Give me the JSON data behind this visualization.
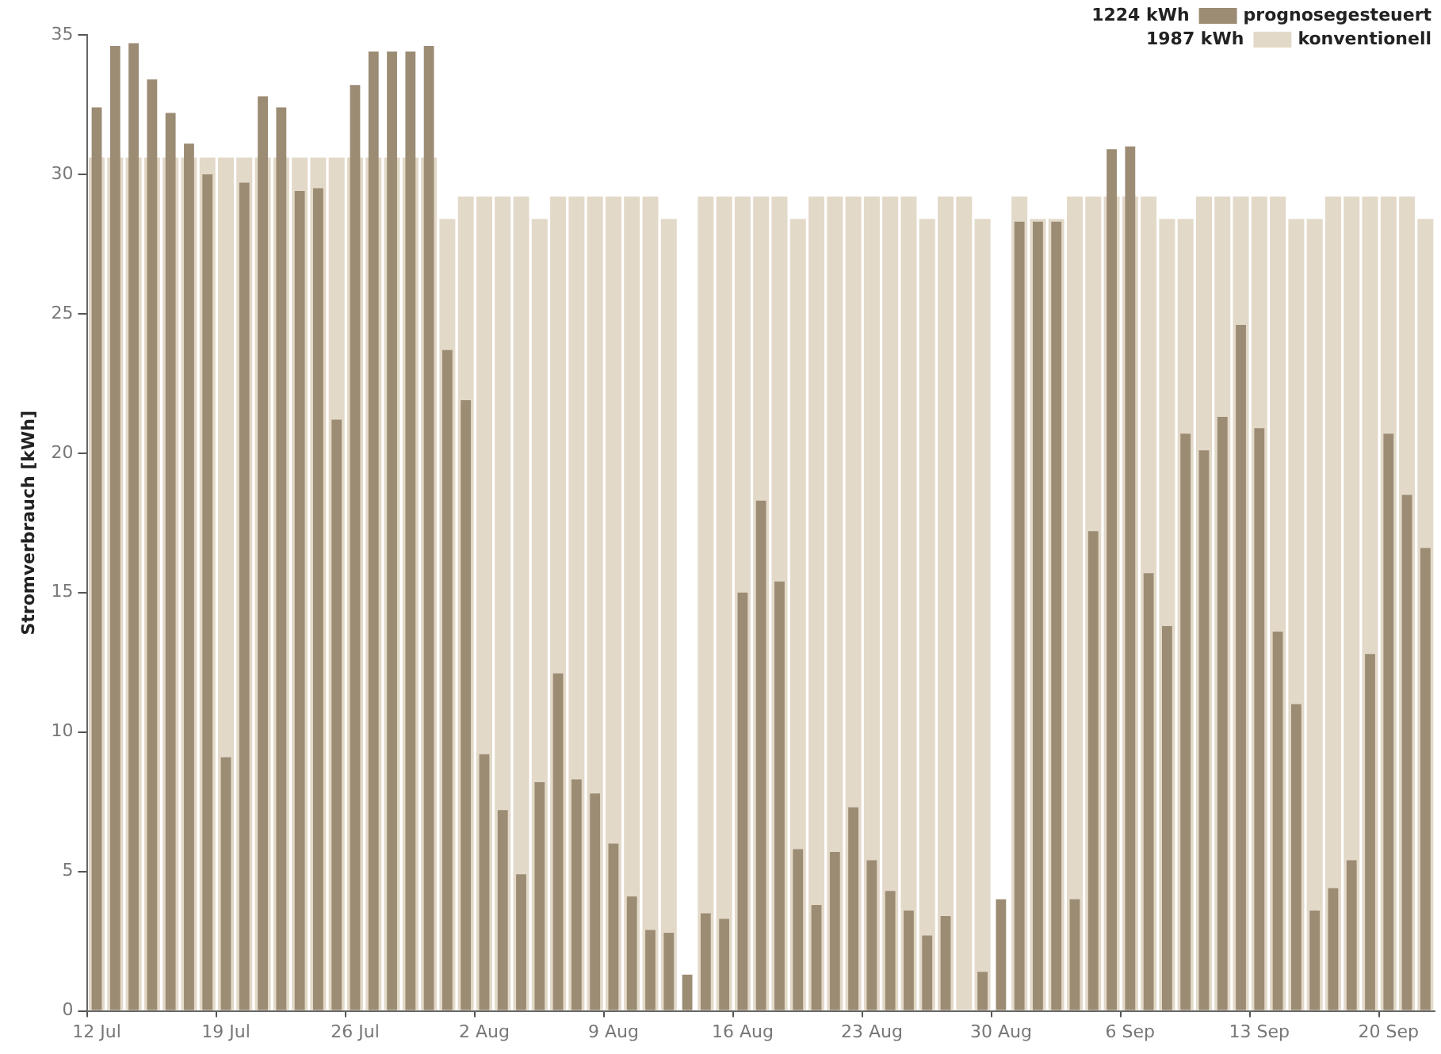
{
  "chart_data": {
    "type": "bar",
    "ylabel": "Stromverbrauch [kWh]",
    "categories": [
      "12 Jul",
      null,
      null,
      null,
      null,
      null,
      null,
      "19 Jul",
      null,
      null,
      null,
      null,
      null,
      null,
      "26 Jul",
      null,
      null,
      null,
      null,
      null,
      null,
      "2 Aug",
      null,
      null,
      null,
      null,
      null,
      null,
      "9 Aug",
      null,
      null,
      null,
      null,
      null,
      null,
      "16 Aug",
      null,
      null,
      null,
      null,
      null,
      null,
      "23 Aug",
      null,
      null,
      null,
      null,
      null,
      null,
      "30 Aug",
      null,
      null,
      null,
      null,
      null,
      null,
      "6 Sep",
      null,
      null,
      null,
      null,
      null,
      null,
      "13 Sep",
      null,
      null,
      null,
      null,
      null,
      null,
      "20 Sep",
      null,
      null
    ],
    "series": [
      {
        "name": "prognosegesteuert",
        "color": "#9c8c74",
        "values": [
          32.4,
          34.6,
          34.7,
          33.4,
          32.2,
          31.1,
          30.0,
          9.1,
          29.7,
          32.8,
          32.4,
          29.4,
          29.5,
          21.2,
          33.2,
          34.4,
          34.4,
          34.4,
          34.6,
          23.7,
          21.9,
          9.2,
          7.2,
          4.9,
          8.2,
          12.1,
          8.3,
          7.8,
          6.0,
          4.1,
          2.9,
          2.8,
          1.3,
          3.5,
          3.3,
          15.0,
          18.3,
          15.4,
          5.8,
          3.8,
          5.7,
          7.3,
          5.4,
          4.3,
          3.6,
          2.7,
          3.4,
          null,
          1.4,
          4.0,
          28.3,
          28.3,
          28.3,
          4.0,
          17.2,
          30.9,
          31.0,
          15.7,
          13.8,
          20.7,
          20.1,
          21.3,
          24.6,
          20.9,
          13.6,
          11.0,
          3.6,
          4.4,
          5.4,
          12.8,
          20.7,
          18.5,
          16.6
        ]
      },
      {
        "name": "konventionell",
        "color": "#e3d9c8",
        "values": [
          30.6,
          30.6,
          30.6,
          30.6,
          30.6,
          30.6,
          30.6,
          30.6,
          30.6,
          30.6,
          30.6,
          30.6,
          30.6,
          30.6,
          30.6,
          30.6,
          30.6,
          30.6,
          30.6,
          28.4,
          29.2,
          29.2,
          29.2,
          29.2,
          28.4,
          29.2,
          29.2,
          29.2,
          29.2,
          29.2,
          29.2,
          28.4,
          null,
          29.2,
          29.2,
          29.2,
          29.2,
          29.2,
          28.4,
          29.2,
          29.2,
          29.2,
          29.2,
          29.2,
          29.2,
          28.4,
          29.2,
          29.2,
          28.4,
          null,
          29.2,
          28.4,
          28.4,
          29.2,
          29.2,
          29.2,
          29.2,
          29.2,
          28.4,
          28.4,
          29.2,
          29.2,
          29.2,
          29.2,
          29.2,
          28.4,
          28.4,
          29.2,
          29.2,
          29.2,
          29.2,
          29.2,
          28.4
        ]
      }
    ],
    "annotations": [
      "1224 kWh",
      "1987 kWh"
    ],
    "ylim": [
      0,
      35
    ],
    "yticks": [
      0,
      5,
      10,
      15,
      20,
      25,
      30,
      35
    ],
    "legend": "top right"
  }
}
